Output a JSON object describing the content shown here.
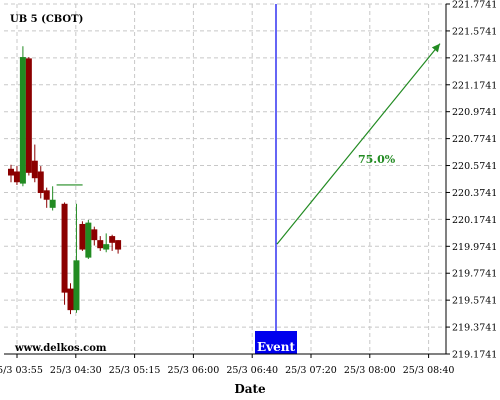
{
  "chart_data": {
    "type": "candlestick",
    "title": "UB 5 (CBOT)",
    "xlabel": "Date",
    "ylabel": "",
    "x_ticks": [
      "25/3 03:55",
      "25/3 04:30",
      "25/3 05:15",
      "25/3 06:00",
      "25/3 06:40",
      "25/3 07:20",
      "25/3 08:00",
      "25/3 08:40"
    ],
    "y_ticks": [
      "219.1741",
      "219.3741",
      "219.5741",
      "219.7741",
      "219.9741",
      "220.1741",
      "220.3741",
      "220.5741",
      "220.7741",
      "220.9741",
      "221.1741",
      "221.3741",
      "221.5741",
      "221.7741"
    ],
    "ylim": [
      219.1741,
      221.7741
    ],
    "grid": true,
    "candles": [
      {
        "open": 220.55,
        "close": 220.5,
        "high": 220.58,
        "low": 220.45
      },
      {
        "open": 220.53,
        "close": 220.45,
        "high": 220.57,
        "low": 220.43
      },
      {
        "open": 220.44,
        "close": 221.38,
        "high": 221.46,
        "low": 220.42
      },
      {
        "open": 221.37,
        "close": 220.52,
        "high": 221.38,
        "low": 220.5
      },
      {
        "open": 220.61,
        "close": 220.48,
        "high": 220.73,
        "low": 220.45
      },
      {
        "open": 220.53,
        "close": 220.37,
        "high": 220.57,
        "low": 220.33
      },
      {
        "open": 220.39,
        "close": 220.32,
        "high": 220.41,
        "low": 220.26
      },
      {
        "open": 220.26,
        "close": 220.32,
        "high": 220.42,
        "low": 220.24
      },
      {
        "open": 220.43,
        "close": 220.43,
        "high": 220.43,
        "low": 220.43
      },
      {
        "open": 220.29,
        "close": 219.63,
        "high": 220.3,
        "low": 219.54
      },
      {
        "open": 219.66,
        "close": 219.5,
        "high": 219.7,
        "low": 219.47
      },
      {
        "open": 219.5,
        "close": 219.87,
        "high": 220.29,
        "low": 219.48
      },
      {
        "open": 220.14,
        "close": 219.95,
        "high": 220.16,
        "low": 219.94
      },
      {
        "open": 219.89,
        "close": 220.15,
        "high": 220.17,
        "low": 219.88
      },
      {
        "open": 220.1,
        "close": 220.02,
        "high": 220.12,
        "low": 219.98
      },
      {
        "open": 220.02,
        "close": 219.96,
        "high": 220.05,
        "low": 219.94
      },
      {
        "open": 219.95,
        "close": 219.99,
        "high": 220.07,
        "low": 219.93
      },
      {
        "open": 220.05,
        "close": 220.0,
        "high": 220.06,
        "low": 219.94
      },
      {
        "open": 220.02,
        "close": 219.95,
        "high": 220.02,
        "low": 219.92
      }
    ],
    "event": {
      "label": "Event",
      "x": "25/3 07:00"
    },
    "projection": {
      "label": "75.0%",
      "from": 219.99,
      "to": 221.48
    }
  },
  "watermark": "www.delkos.com",
  "colors": {
    "up": "#228b22",
    "down": "#8b0000",
    "event": "#0000ee",
    "projection": "#228b22",
    "grid": "#c8c8c8"
  }
}
